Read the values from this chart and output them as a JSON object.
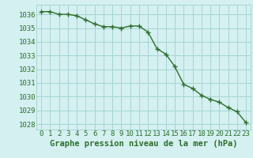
{
  "x": [
    0,
    1,
    2,
    3,
    4,
    5,
    6,
    7,
    8,
    9,
    10,
    11,
    12,
    13,
    14,
    15,
    16,
    17,
    18,
    19,
    20,
    21,
    22,
    23
  ],
  "y": [
    1036.2,
    1036.2,
    1036.0,
    1036.0,
    1035.9,
    1035.6,
    1035.3,
    1035.1,
    1035.1,
    1035.0,
    1035.15,
    1035.15,
    1034.7,
    1033.5,
    1033.1,
    1032.2,
    1030.9,
    1030.6,
    1030.1,
    1029.8,
    1029.6,
    1029.2,
    1028.9,
    1028.1
  ],
  "line_color": "#2d6e2d",
  "marker": "+",
  "marker_size": 4,
  "linewidth": 1.0,
  "bg_color": "#d4f0f0",
  "grid_color": "#a8d4d4",
  "xlabel": "Graphe pression niveau de la mer (hPa)",
  "xlabel_color": "#2d6e2d",
  "xlabel_fontsize": 7.5,
  "ytick_labels": [
    1028,
    1029,
    1030,
    1031,
    1032,
    1033,
    1034,
    1035,
    1036
  ],
  "ylim": [
    1027.6,
    1036.7
  ],
  "xlim": [
    -0.5,
    23.5
  ],
  "tick_color": "#2d6e2d",
  "tick_fontsize": 6.5,
  "xtick_labels": [
    "0",
    "1",
    "2",
    "3",
    "4",
    "5",
    "6",
    "7",
    "8",
    "9",
    "10",
    "11",
    "12",
    "13",
    "14",
    "15",
    "16",
    "17",
    "18",
    "19",
    "20",
    "21",
    "22",
    "23"
  ]
}
